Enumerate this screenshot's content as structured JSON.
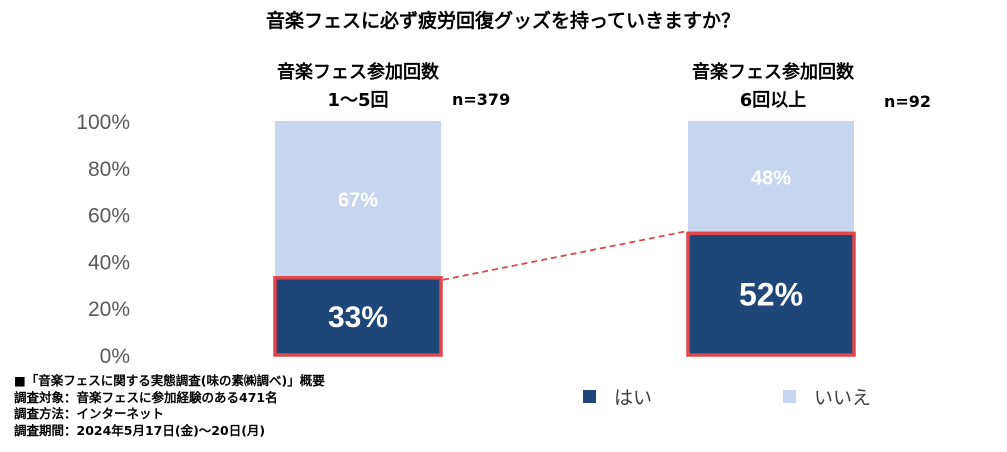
{
  "chart_data": {
    "type": "bar",
    "stacked": true,
    "title": "音楽フェスに必ず疲労回復グッズを持っていきますか？",
    "categories": [
      {
        "lines": [
          "音楽フェス参加回数",
          "1～5回"
        ],
        "n": "n=379"
      },
      {
        "lines": [
          "音楽フェス参加回数",
          "6回以上"
        ],
        "n": "n=92"
      }
    ],
    "series": [
      {
        "name": "はい",
        "color": "#1f4679",
        "values": [
          33,
          52
        ],
        "labels": [
          "33%",
          "52%"
        ]
      },
      {
        "name": "いいえ",
        "color": "#c5d6ee",
        "values": [
          67,
          48
        ],
        "labels": [
          "67%",
          "48%"
        ]
      }
    ],
    "yticks": [
      "0%",
      "20%",
      "40%",
      "60%",
      "80%",
      "100%"
    ],
    "ylim": [
      0,
      100
    ],
    "highlight_color": "#e0474c",
    "legend_position": "bottom-right"
  },
  "notes": [
    "■「音楽フェスに関する実態調査(味の素㈱調べ)」概要",
    "調査対象：音楽フェスに参加経験のある471名",
    "調査方法：インターネット",
    "調査期間：2024年5月17日(金)～20日(月)"
  ]
}
